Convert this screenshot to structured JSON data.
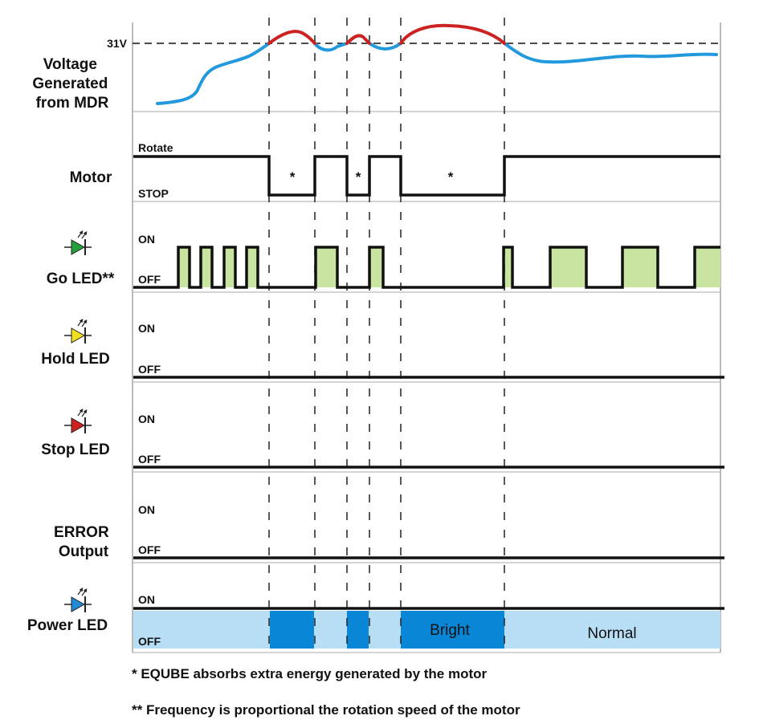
{
  "colors": {
    "voltage_below": "#2299dd",
    "voltage_above": "#cc2222",
    "go_led": "#22a03a",
    "go_fill": "#c8e4a0",
    "hold_led": "#f0e020",
    "stop_led": "#d02020",
    "power_led": "#2288d8",
    "power_normal": "#b8def6",
    "power_bright": "#0a86d6"
  },
  "voltage": {
    "label": [
      "Voltage",
      "Generated",
      "from MDR"
    ],
    "threshold_label": "31V"
  },
  "motor": {
    "label": "Motor",
    "high_label": "Rotate",
    "low_label": "STOP",
    "absorb_marks": [
      "*",
      "*",
      "*"
    ]
  },
  "go_led": {
    "label": "Go LED**",
    "high_label": "ON",
    "low_label": "OFF",
    "icon": "led-green-icon"
  },
  "hold_led": {
    "label": "Hold LED",
    "high_label": "ON",
    "low_label": "OFF",
    "icon": "led-yellow-icon"
  },
  "stop_led": {
    "label": "Stop LED",
    "high_label": "ON",
    "low_label": "OFF",
    "icon": "led-red-icon"
  },
  "error_output": {
    "label": [
      "ERROR",
      "Output"
    ],
    "high_label": "ON",
    "low_label": "OFF"
  },
  "power_led": {
    "label": "Power LED",
    "high_label": "ON",
    "low_label": "OFF",
    "bright_label": "Bright",
    "normal_label": "Normal",
    "icon": "led-blue-icon"
  },
  "footnotes": {
    "absorb": "* EQUBE absorbs extra energy generated by the motor",
    "frequency": "** Frequency is proportional the rotation speed of the motor"
  }
}
